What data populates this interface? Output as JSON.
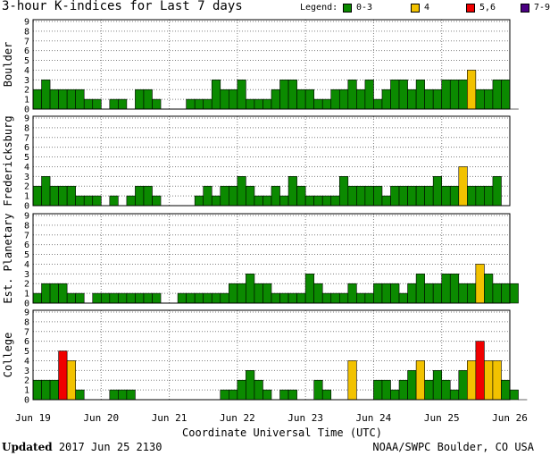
{
  "header": {
    "title": "3-hour K-indices for Last 7 days",
    "legend_label": "Legend:",
    "legend": [
      {
        "label": "0-3",
        "color": "#0b8a00"
      },
      {
        "label": "4",
        "color": "#f2c200"
      },
      {
        "label": "5,6",
        "color": "#f00000"
      },
      {
        "label": "7-9",
        "color": "#4b0082"
      }
    ]
  },
  "footer": {
    "updated_label": "Updated",
    "updated_value": "2017 Jun 25 2130",
    "source": "NOAA/SWPC Boulder, CO USA"
  },
  "chart_data": {
    "type": "bar",
    "xlabel": "Coordinate Universal Time (UTC)",
    "x_ticks": [
      "Jun 19",
      "Jun 20",
      "Jun 21",
      "Jun 22",
      "Jun 23",
      "Jun 24",
      "Jun 25",
      "Jun 26"
    ],
    "ylim": [
      0,
      9
    ],
    "yticks": [
      0,
      1,
      2,
      3,
      4,
      5,
      6,
      7,
      8,
      9
    ],
    "bins_per_day": 8,
    "color_rules": {
      "0-3": "#0b8a00",
      "4": "#f2c200",
      "5-6": "#f00000",
      "7-9": "#4b0082"
    },
    "panels": [
      {
        "name": "Boulder",
        "values": [
          2,
          3,
          2,
          2,
          2,
          2,
          1,
          1,
          0,
          1,
          1,
          0,
          2,
          2,
          1,
          0,
          0,
          0,
          1,
          1,
          1,
          3,
          2,
          2,
          3,
          1,
          1,
          1,
          2,
          3,
          3,
          2,
          2,
          1,
          1,
          2,
          2,
          3,
          2,
          3,
          1,
          2,
          3,
          3,
          2,
          3,
          2,
          2,
          3,
          3,
          3,
          4,
          2,
          2,
          3,
          3,
          0
        ]
      },
      {
        "name": "Fredericksburg",
        "values": [
          2,
          3,
          2,
          2,
          2,
          1,
          1,
          1,
          0,
          1,
          0,
          1,
          2,
          2,
          1,
          0,
          0,
          0,
          0,
          1,
          2,
          1,
          2,
          2,
          3,
          2,
          1,
          1,
          2,
          1,
          3,
          2,
          1,
          1,
          1,
          1,
          3,
          2,
          2,
          2,
          2,
          1,
          2,
          2,
          2,
          2,
          2,
          3,
          2,
          2,
          4,
          2,
          2,
          2,
          3,
          0
        ]
      },
      {
        "name": "Est. Planetary",
        "values": [
          1,
          2,
          2,
          2,
          1,
          1,
          0,
          1,
          1,
          1,
          1,
          1,
          1,
          1,
          1,
          0,
          0,
          1,
          1,
          1,
          1,
          1,
          1,
          2,
          2,
          3,
          2,
          2,
          1,
          1,
          1,
          1,
          3,
          2,
          1,
          1,
          1,
          2,
          1,
          1,
          2,
          2,
          2,
          1,
          2,
          3,
          2,
          2,
          3,
          3,
          2,
          2,
          4,
          3,
          2,
          2,
          2
        ]
      },
      {
        "name": "College",
        "values": [
          2,
          2,
          2,
          5,
          4,
          1,
          0,
          0,
          0,
          1,
          1,
          1,
          0,
          0,
          0,
          0,
          0,
          0,
          0,
          0,
          0,
          0,
          1,
          1,
          2,
          3,
          2,
          1,
          0,
          1,
          1,
          0,
          0,
          2,
          1,
          0,
          0,
          4,
          0,
          0,
          2,
          2,
          1,
          2,
          3,
          4,
          2,
          3,
          2,
          1,
          3,
          4,
          6,
          4,
          4,
          2,
          1,
          0
        ]
      }
    ]
  }
}
